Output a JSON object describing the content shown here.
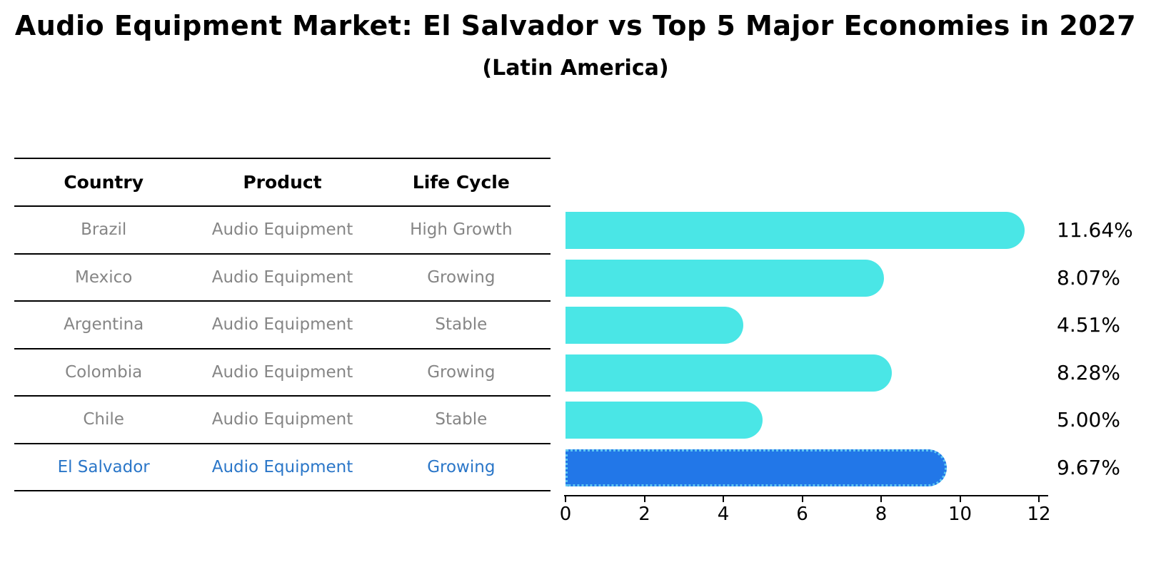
{
  "header": {
    "title": "Audio Equipment Market: El Salvador vs Top 5 Major Economies in 2027",
    "subtitle": "(Latin America)"
  },
  "table": {
    "columns": [
      "Country",
      "Product",
      "Life Cycle"
    ],
    "rows": [
      {
        "country": "Brazil",
        "product": "Audio Equipment",
        "life_cycle": "High Growth",
        "highlighted": false
      },
      {
        "country": "Mexico",
        "product": "Audio Equipment",
        "life_cycle": "Growing",
        "highlighted": false
      },
      {
        "country": "Argentina",
        "product": "Audio Equipment",
        "life_cycle": "Stable",
        "highlighted": false
      },
      {
        "country": "Colombia",
        "product": "Audio Equipment",
        "life_cycle": "Growing",
        "highlighted": false
      },
      {
        "country": "Chile",
        "product": "Audio Equipment",
        "life_cycle": "Stable",
        "highlighted": false
      },
      {
        "country": "El Salvador",
        "product": "Audio Equipment",
        "life_cycle": "Growing",
        "highlighted": true
      }
    ]
  },
  "chart_data": {
    "type": "bar",
    "orientation": "horizontal",
    "title": "Audio Equipment Market: El Salvador vs Top 5 Major Economies in 2027",
    "subtitle": "(Latin America)",
    "categories": [
      "Brazil",
      "Mexico",
      "Argentina",
      "Colombia",
      "Chile",
      "El Salvador"
    ],
    "values": [
      11.64,
      8.07,
      4.51,
      8.28,
      5.0,
      9.67
    ],
    "value_labels": [
      "11.64%",
      "8.07%",
      "4.51%",
      "8.28%",
      "5.00%",
      "9.67%"
    ],
    "xlim": [
      0,
      12
    ],
    "x_ticks": [
      0,
      2,
      4,
      6,
      8,
      10,
      12
    ],
    "grid": false,
    "legend": "none",
    "bar_color": "#4ae6e6",
    "highlight_index": 5,
    "highlight_color": "#2277e8",
    "highlight_border_color": "#5fc8f2",
    "highlight_text_color": "#2a76c8",
    "row_text_color": "#858585"
  }
}
